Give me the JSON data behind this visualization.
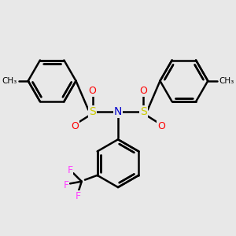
{
  "bg_color": "#e8e8e8",
  "bond_color": "#000000",
  "S_color": "#cccc00",
  "N_color": "#0000cc",
  "O_color": "#ff0000",
  "F_color": "#ff44ff",
  "line_width": 1.8,
  "fig_size": [
    3.0,
    3.0
  ],
  "dpi": 100,
  "xlim": [
    -2.8,
    2.8
  ],
  "ylim": [
    -2.8,
    2.8
  ]
}
